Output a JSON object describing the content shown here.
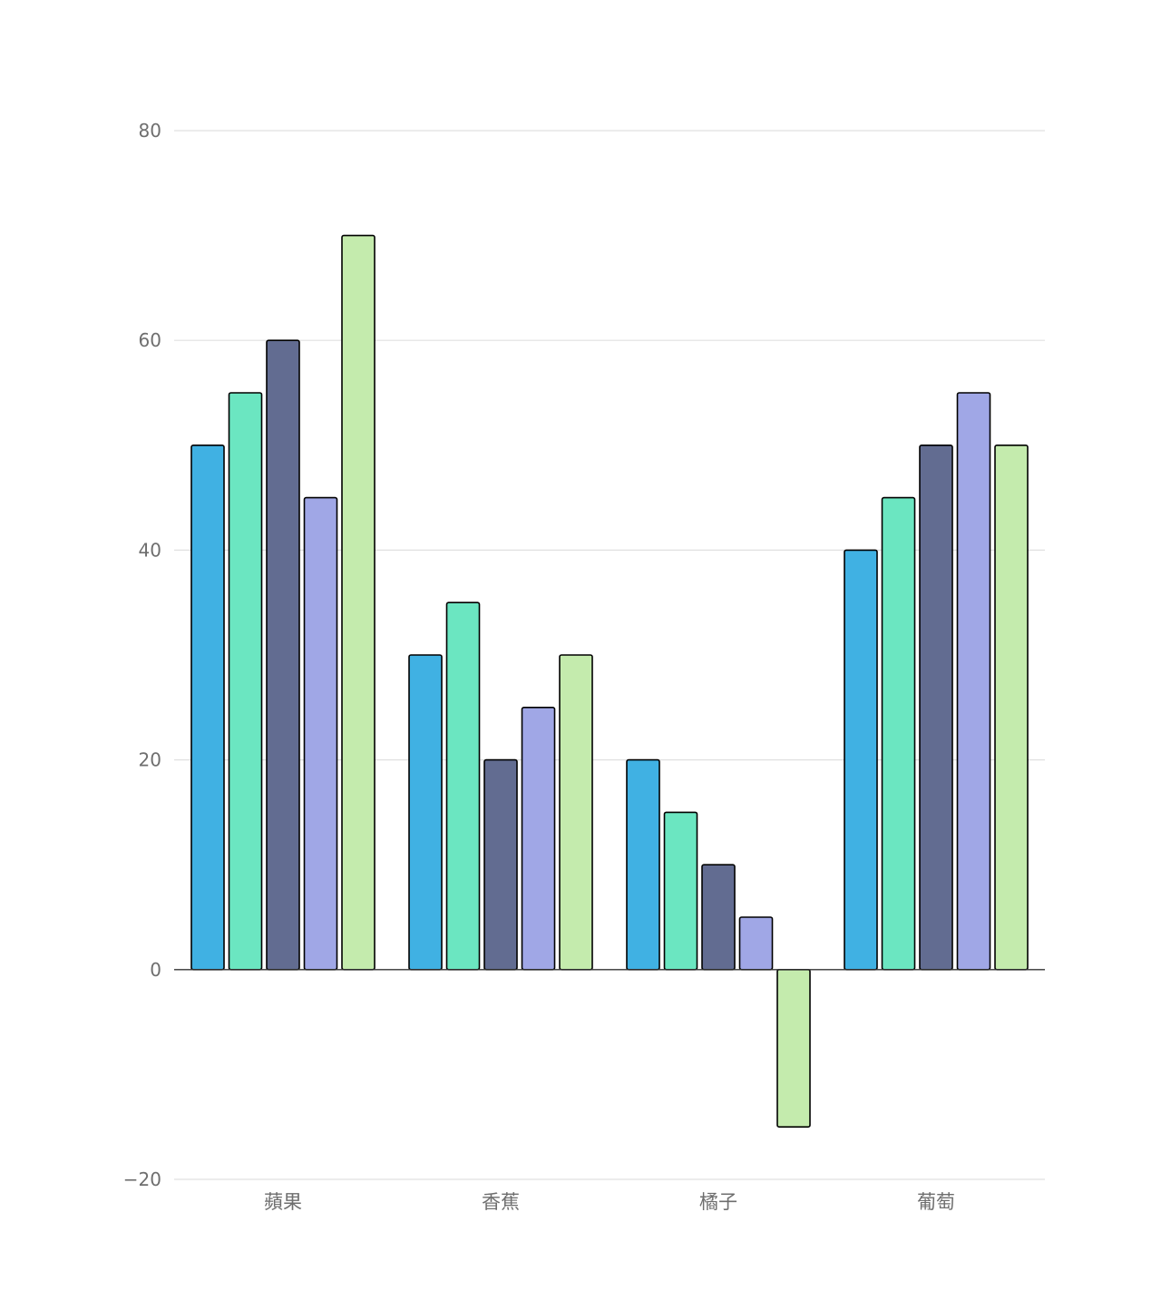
{
  "chart_data": {
    "type": "bar",
    "categories": [
      "蘋果",
      "香蕉",
      "橘子",
      "葡萄"
    ],
    "series": [
      {
        "values": [
          50,
          30,
          20,
          40
        ],
        "color": "#40b1e3"
      },
      {
        "values": [
          55,
          35,
          15,
          45
        ],
        "color": "#6be6c1"
      },
      {
        "values": [
          60,
          20,
          10,
          50
        ],
        "color": "#626c91"
      },
      {
        "values": [
          45,
          25,
          5,
          55
        ],
        "color": "#a0a7e6"
      },
      {
        "values": [
          70,
          30,
          -15,
          50
        ],
        "color": "#c4ebad"
      }
    ],
    "ylim": [
      -20,
      80
    ],
    "yticks": [
      -20,
      0,
      20,
      40,
      60,
      80
    ],
    "ytick_labels": [
      "−20",
      "0",
      "20",
      "40",
      "60",
      "80"
    ],
    "grid": true,
    "bar_border_color": "#000000",
    "gridline_color": "#e0e0e0",
    "zero_line_color": "#333333"
  }
}
